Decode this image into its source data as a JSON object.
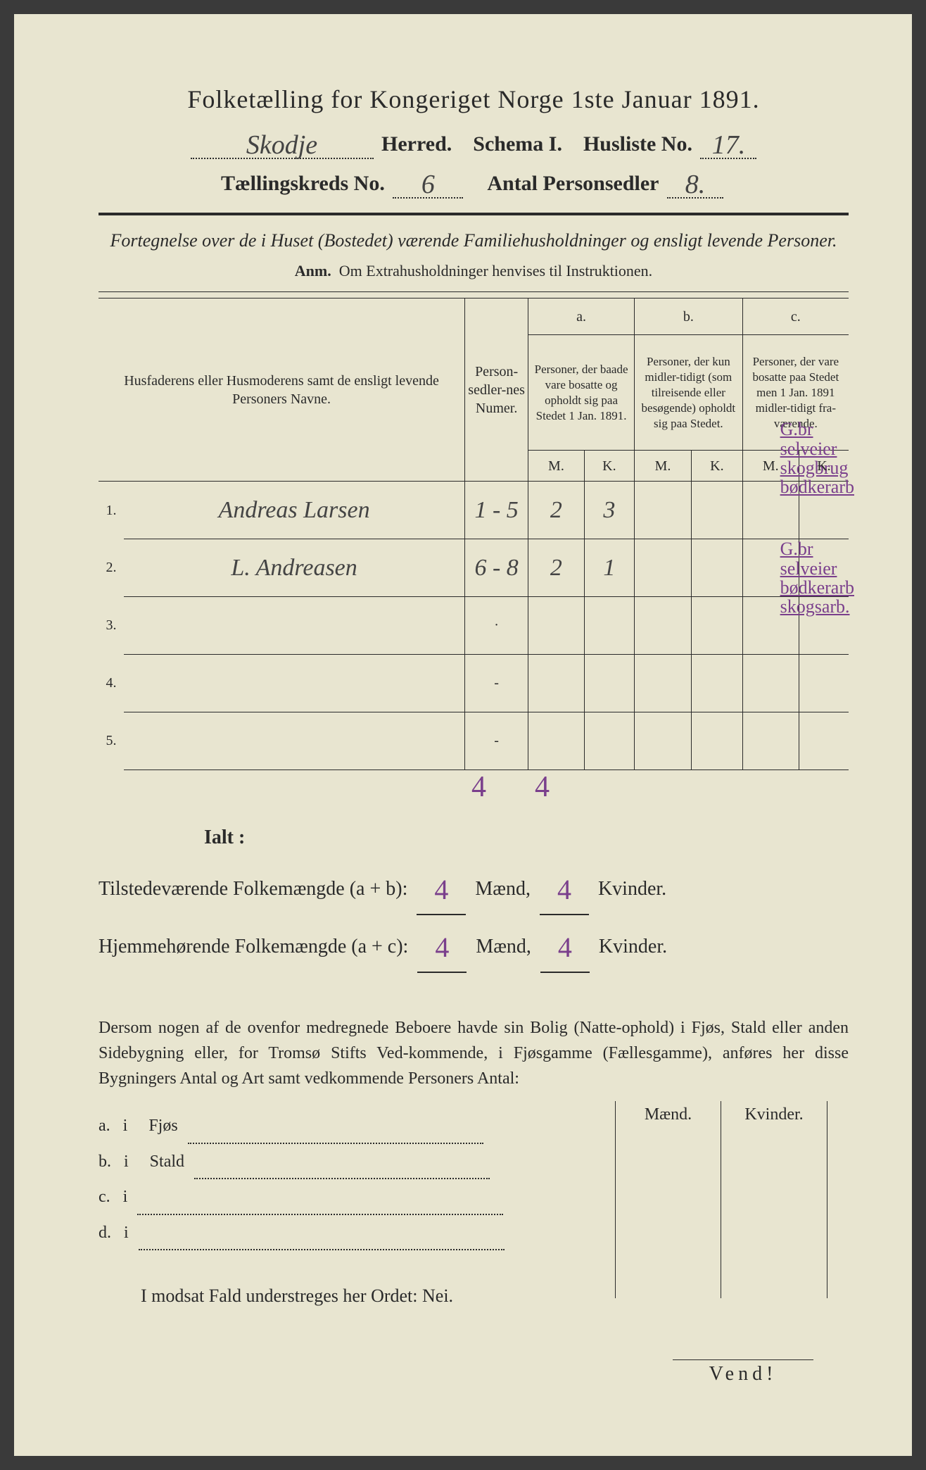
{
  "title": "Folketælling for Kongeriget Norge 1ste Januar 1891.",
  "herred_value": "Skodje",
  "herred_label": "Herred.",
  "schema_label": "Schema I.",
  "husliste_label": "Husliste No.",
  "husliste_value": "17.",
  "kreds_label": "Tællingskreds No.",
  "kreds_value": "6",
  "antal_label": "Antal Personsedler",
  "antal_value": "8.",
  "subhead": "Fortegnelse over de i Huset (Bostedet) værende Familiehusholdninger og ensligt levende Personer.",
  "anm": "Anm.  Om Extrahusholdninger henvises til Instruktionen.",
  "columns": {
    "name_header": "Husfaderens eller Husmoderens samt de ensligt levende Personers Navne.",
    "numer_header": "Person-sedler-nes Numer.",
    "a_label": "a.",
    "a_text": "Personer, der baade vare bosatte og opholdt sig paa Stedet 1 Jan. 1891.",
    "b_label": "b.",
    "b_text": "Personer, der kun midler-tidigt (som tilreisende eller besøgende) opholdt sig paa Stedet.",
    "c_label": "c.",
    "c_text": "Personer, der vare bosatte paa Stedet men 1 Jan. 1891 midler-tidigt fra-værende.",
    "m": "M.",
    "k": "K."
  },
  "rows": [
    {
      "num": "1.",
      "name": "Andreas Larsen",
      "sedler": "1 - 5",
      "am": "2",
      "ak": "3",
      "bm": "",
      "bk": "",
      "cm": "",
      "ck": "",
      "note": "G.br\nselveier\nskogbrug\nbødkerarb"
    },
    {
      "num": "2.",
      "name": "L. Andreasen",
      "sedler": "6 - 8",
      "am": "2",
      "ak": "1",
      "bm": "",
      "bk": "",
      "cm": "",
      "ck": "",
      "note": "G.br\nselveier\nbødkerarb\nskogsarb."
    },
    {
      "num": "3.",
      "name": "",
      "sedler": "·",
      "am": "",
      "ak": "",
      "bm": "",
      "bk": "",
      "cm": "",
      "ck": "",
      "note": ""
    },
    {
      "num": "4.",
      "name": "",
      "sedler": "-",
      "am": "",
      "ak": "",
      "bm": "",
      "bk": "",
      "cm": "",
      "ck": "",
      "note": ""
    },
    {
      "num": "5.",
      "name": "",
      "sedler": "-",
      "am": "",
      "ak": "",
      "bm": "",
      "bk": "",
      "cm": "",
      "ck": "",
      "note": ""
    }
  ],
  "ialt_label": "Ialt :",
  "ialt_am": "4",
  "ialt_ak": "4",
  "tilstede_label": "Tilstedeværende Folkemængde (a + b):",
  "tilstede_m": "4",
  "tilstede_k": "4",
  "hjemme_label": "Hjemmehørende Folkemængde (a + c):",
  "hjemme_m": "4",
  "hjemme_k": "4",
  "maend": "Mænd,",
  "kvinder": "Kvinder.",
  "para": "Dersom nogen af de ovenfor medregnede Beboere havde sin Bolig (Natte-ophold) i Fjøs, Stald eller anden Sidebygning eller, for Tromsø Stifts Ved-kommende, i Fjøsgamme (Fællesgamme), anføres her disse Bygningers Antal og Art samt vedkommende Personers Antal:",
  "side_maend": "Mænd.",
  "side_kvinder": "Kvinder.",
  "side_rows": [
    {
      "letter": "a.",
      "i": "i",
      "label": "Fjøs"
    },
    {
      "letter": "b.",
      "i": "i",
      "label": "Stald"
    },
    {
      "letter": "c.",
      "i": "i",
      "label": ""
    },
    {
      "letter": "d.",
      "i": "i",
      "label": ""
    }
  ],
  "nei": "I modsat Fald understreges her Ordet: Nei.",
  "vend": "Vend!",
  "colors": {
    "paper": "#e8e5d0",
    "ink": "#2a2a2a",
    "handwriting": "#444444",
    "purple": "#7a3f8c"
  }
}
